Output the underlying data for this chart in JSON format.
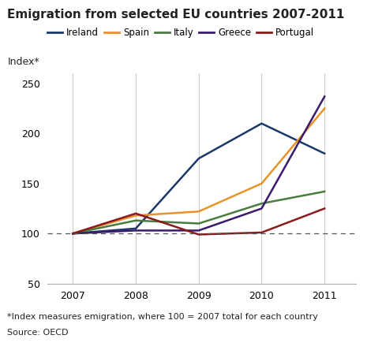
{
  "title": "Emigration from selected EU countries 2007-2011",
  "ylabel": "Index*",
  "years": [
    2007,
    2008,
    2009,
    2010,
    2011
  ],
  "ylim": [
    50,
    260
  ],
  "yticks": [
    50,
    100,
    150,
    200,
    250
  ],
  "footnote1": "*Index measures emigration, where 100 = 2007 total for each country",
  "footnote2": "Source: OECD",
  "series": [
    {
      "label": "Ireland",
      "color": "#1a3868",
      "values": [
        100,
        105,
        175,
        210,
        180
      ]
    },
    {
      "label": "Spain",
      "color": "#e8922a",
      "values": [
        100,
        118,
        122,
        150,
        225
      ]
    },
    {
      "label": "Italy",
      "color": "#4a7c3f",
      "values": [
        100,
        113,
        110,
        130,
        142
      ]
    },
    {
      "label": "Greece",
      "color": "#3b1a6e",
      "values": [
        100,
        103,
        103,
        125,
        237
      ]
    },
    {
      "label": "Portugal",
      "color": "#8b1a1a",
      "values": [
        100,
        120,
        99,
        101,
        125
      ]
    }
  ],
  "background_color": "#ffffff",
  "grid_color": "#cccccc",
  "dashed_line_y": 100,
  "title_fontsize": 11,
  "legend_fontsize": 8.5,
  "axis_fontsize": 9,
  "footnote_fontsize": 8
}
